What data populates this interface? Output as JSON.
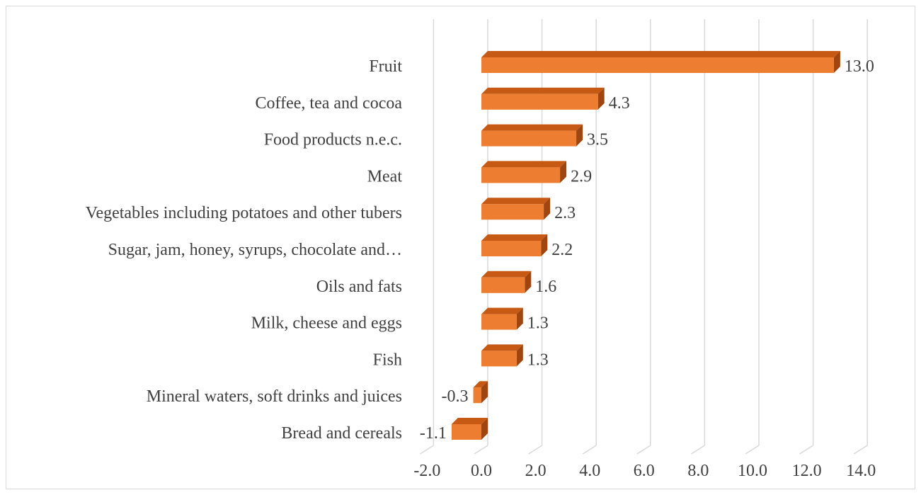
{
  "chart_data": {
    "type": "bar",
    "orientation": "horizontal",
    "style": "3d",
    "title": "",
    "xlabel": "",
    "ylabel": "",
    "categories": [
      "Fruit",
      "Coffee, tea and cocoa",
      "Food products n.e.c.",
      "Meat",
      "Vegetables including potatoes and other tubers",
      "Sugar, jam, honey, syrups, chocolate and…",
      "Oils and fats",
      "Milk, cheese and eggs",
      "Fish",
      "Mineral waters, soft drinks and juices",
      "Bread and cereals"
    ],
    "values": [
      13.0,
      4.3,
      3.5,
      2.9,
      2.3,
      2.2,
      1.6,
      1.3,
      1.3,
      -0.3,
      -1.1
    ],
    "value_labels": [
      "13.0",
      "4.3",
      "3.5",
      "2.9",
      "2.3",
      "2.2",
      "1.6",
      "1.3",
      "1.3",
      "-0.3",
      "-1.1"
    ],
    "xlim": [
      -2.0,
      14.0
    ],
    "xticks": [
      -2.0,
      0.0,
      2.0,
      4.0,
      6.0,
      8.0,
      10.0,
      12.0,
      14.0
    ],
    "xtick_labels": [
      "-2.0",
      "0.0",
      "2.0",
      "4.0",
      "6.0",
      "8.0",
      "10.0",
      "12.0",
      "14.0"
    ],
    "grid": true,
    "legend": false,
    "colors": {
      "bar_front": "#ED7D31",
      "bar_top": "#C65A15",
      "bar_side": "#9E4510",
      "gridline": "#d9d9d9",
      "text": "#404040"
    }
  }
}
